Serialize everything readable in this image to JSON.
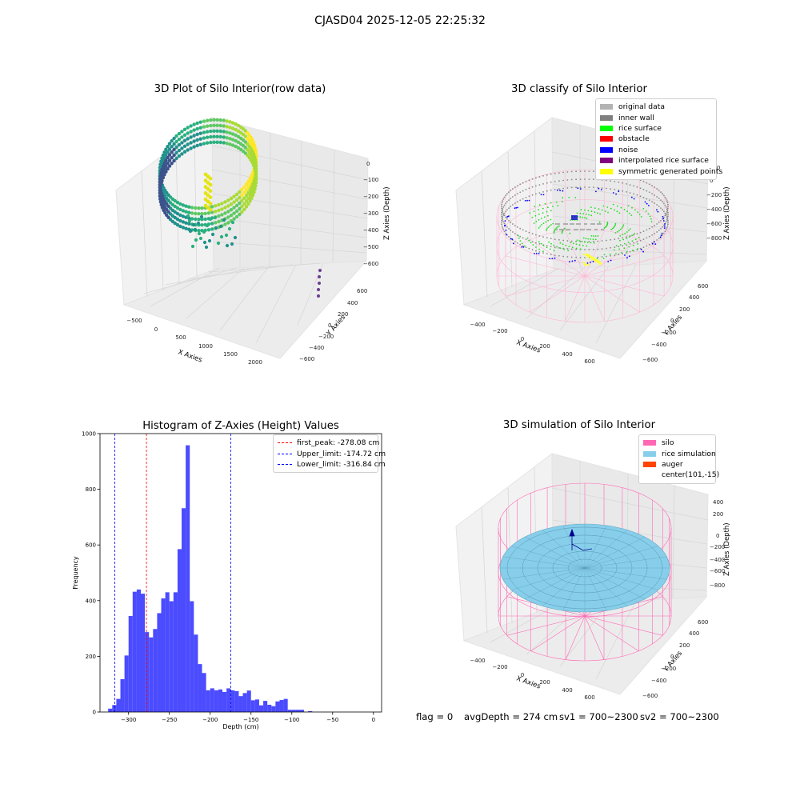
{
  "figure": {
    "suptitle": "CJASD04 2025-12-05 22:25:32"
  },
  "panels": {
    "raw": {
      "title": "3D Plot of Silo Interior(row data)",
      "xlabel": "X Axies",
      "ylabel": "Y Axies",
      "zlabel": "Z Axies (Depth)",
      "xticks": [
        "−500",
        "0",
        "500",
        "1000",
        "1500",
        "2000"
      ],
      "yticks": [
        "600",
        "400",
        "200",
        "0",
        "−200",
        "−400",
        "−600"
      ],
      "zticks": [
        "0",
        "−100",
        "−200",
        "−300",
        "−400",
        "−500",
        "−600"
      ],
      "colormap": "viridis"
    },
    "classify": {
      "title": "3D classify of Silo Interior",
      "xlabel": "X Axies",
      "ylabel": "Y Axies",
      "zlabel": "Z Axies (Depth)",
      "xticks": [
        "−400",
        "−200",
        "0",
        "200",
        "400",
        "600"
      ],
      "yticks": [
        "600",
        "400",
        "200",
        "0",
        "−200",
        "−400",
        "−600"
      ],
      "zticks": [
        "200",
        "0",
        "−200",
        "−400",
        "−600",
        "−800"
      ],
      "legend": [
        {
          "label": "original data",
          "color": "#b3b3b3"
        },
        {
          "label": "inner wall",
          "color": "#808080"
        },
        {
          "label": "rice surface",
          "color": "#00ff00"
        },
        {
          "label": "obstacle",
          "color": "#ff0000"
        },
        {
          "label": "noise",
          "color": "#0000ff"
        },
        {
          "label": "interpolated rice surface",
          "color": "#800080"
        },
        {
          "label": "symmetric generated points",
          "color": "#ffff00"
        }
      ]
    },
    "simulation": {
      "title": "3D simulation of Silo Interior",
      "xlabel": "X Axies",
      "ylabel": "Y Axies",
      "zlabel": "Z Axies (Depth)",
      "xticks": [
        "−400",
        "−200",
        "0",
        "200",
        "400",
        "600"
      ],
      "yticks": [
        "600",
        "400",
        "200",
        "0",
        "−200",
        "−400",
        "−600"
      ],
      "zticks": [
        "400",
        "200",
        "0",
        "−200",
        "−400",
        "−600",
        "−800"
      ],
      "legend": [
        {
          "label": "silo",
          "color": "#ff69b4"
        },
        {
          "label": "rice simulation",
          "color": "#87ceeb"
        },
        {
          "label": "auger",
          "color": "#ff4500"
        },
        {
          "label": "center(101,-15)",
          "color": "#ffffff"
        }
      ]
    }
  },
  "status": {
    "flag": "flag = 0",
    "avg_depth": "avgDepth = 274 cm",
    "sv1": "sv1 = 700~2300",
    "sv2": "sv2 = 700~2300"
  },
  "chart_data": [
    {
      "type": "bar",
      "title": "Histogram of Z-Axies (Height) Values",
      "xlabel": "Depth (cm)",
      "ylabel": "Frequency",
      "xlim": [
        -335,
        10
      ],
      "ylim": [
        0,
        1000
      ],
      "xticks": [
        -300,
        -250,
        -200,
        -150,
        -100,
        -50,
        0
      ],
      "xtick_labels": [
        "−300",
        "−250",
        "−200",
        "−150",
        "−100",
        "−50",
        "0"
      ],
      "yticks": [
        0,
        200,
        400,
        600,
        800,
        1000
      ],
      "bin_start": -325,
      "bin_width": 5,
      "bar_color": "#4b4bff",
      "values": [
        12,
        25,
        47,
        118,
        203,
        345,
        432,
        440,
        425,
        287,
        268,
        298,
        355,
        408,
        430,
        398,
        430,
        585,
        732,
        958,
        398,
        278,
        172,
        140,
        78,
        85,
        78,
        81,
        72,
        85,
        78,
        75,
        57,
        68,
        77,
        42,
        45,
        24,
        40,
        26,
        21,
        38,
        43,
        47,
        8,
        8,
        8,
        8,
        0,
        3
      ],
      "vlines": [
        {
          "label": "first_peak: -278.08 cm",
          "x": -278.08,
          "color": "#ff0000"
        },
        {
          "label": "Upper_limit: -174.72 cm",
          "x": -174.72,
          "color": "#0000ff"
        },
        {
          "label": "Lower_limit: -316.84 cm",
          "x": -316.84,
          "color": "#0000ff"
        }
      ],
      "legend_position": "upper right"
    }
  ]
}
